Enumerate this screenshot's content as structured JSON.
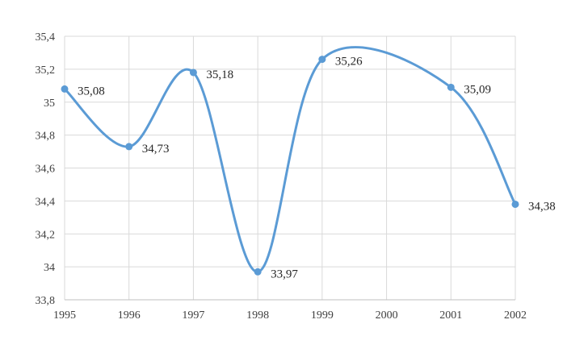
{
  "chart_data": {
    "type": "line",
    "smooth": true,
    "categories": [
      "1995",
      "1996",
      "1997",
      "1998",
      "1999",
      "2000",
      "2001",
      "2002"
    ],
    "x_numeric": [
      1995,
      1996,
      1997,
      1998,
      1999,
      2000,
      2001,
      2002
    ],
    "series": [
      {
        "x": [
          1995,
          1996,
          1997,
          1998,
          1999,
          2001,
          2002
        ],
        "values": [
          35.08,
          34.73,
          35.18,
          33.97,
          35.26,
          35.09,
          34.38
        ],
        "labels": [
          "35,08",
          "34,73",
          "35,18",
          "33,97",
          "35,26",
          "35,09",
          "34,38"
        ],
        "color": "#5b9bd5"
      }
    ],
    "ylim": [
      33.8,
      35.4
    ],
    "yticks": [
      33.8,
      34,
      34.2,
      34.4,
      34.6,
      34.8,
      35,
      35.2,
      35.4
    ],
    "ytick_labels": [
      "33,8",
      "34",
      "34,2",
      "34,4",
      "34,6",
      "34,8",
      "35",
      "35,2",
      "35,4"
    ],
    "xtick_labels": [
      "1995",
      "1996",
      "1997",
      "1998",
      "1999",
      "2000",
      "2001",
      "2002"
    ],
    "title": "",
    "xlabel": "",
    "ylabel": "",
    "grid": true,
    "legend": "none",
    "gridline_color": "#d9d9d9",
    "axis_color": "#bfbfbf"
  }
}
